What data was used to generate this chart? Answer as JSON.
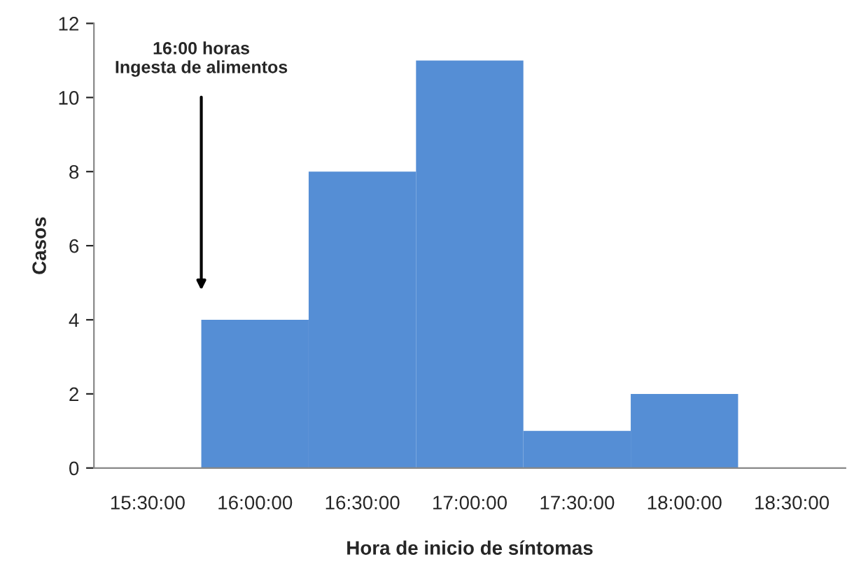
{
  "chart_data": {
    "type": "histogram",
    "xlabel": "Hora de inicio de síntomas",
    "ylabel": "Casos",
    "bins": [
      15.75,
      16.25,
      16.75,
      17.25,
      17.75,
      18.25
    ],
    "values": [
      4,
      8,
      11,
      1,
      2
    ],
    "color": "#558ed5",
    "xlim": [
      15.25,
      18.75
    ],
    "xticks": [
      {
        "value": 15.5,
        "label": "15:30:00"
      },
      {
        "value": 16,
        "label": "16:00:00"
      },
      {
        "value": 16.5,
        "label": "16:30:00"
      },
      {
        "value": 17,
        "label": "17:00:00"
      },
      {
        "value": 17.5,
        "label": "17:30:00"
      },
      {
        "value": 18,
        "label": "18:00:00"
      },
      {
        "value": 18.5,
        "label": "18:30:00"
      }
    ],
    "ylim": [
      0,
      12
    ],
    "yticks": [
      0,
      2,
      4,
      6,
      8,
      10,
      12
    ],
    "grid": false,
    "legend": false,
    "annotations": [
      "16:00 horas\nIngesta de alimentos"
    ]
  }
}
